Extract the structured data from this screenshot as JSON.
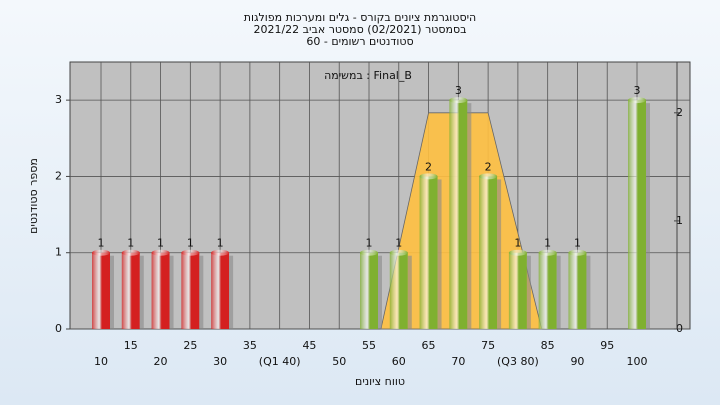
{
  "chart_data": {
    "type": "bar",
    "title": "היסטוגרמת ציונים בקורס - גלים ומערכות מפולגות",
    "subtitle": "בסמסטר  (02/2021)  סמסטר אביב 2021/22",
    "subtitle2": "סטודנטים רשומים - 60",
    "annotation": "במשימה : Final_B",
    "ylabel": "מספר סטודנטים",
    "xlabel": "טווח ציונים",
    "categories": [
      "10",
      "15",
      "20",
      "25",
      "30",
      "35",
      "(Q1 40)",
      "45",
      "50",
      "55",
      "60",
      "65",
      "70",
      "75",
      "(Q3 80)",
      "85",
      "90",
      "95",
      "100"
    ],
    "values": [
      1,
      1,
      1,
      1,
      1,
      0,
      0,
      0,
      0,
      1,
      1,
      2,
      3,
      2,
      1,
      1,
      1,
      0,
      3
    ],
    "colors": [
      "#d42020",
      "#d42020",
      "#d42020",
      "#d42020",
      "#d42020",
      "#7fb030",
      "#7fb030",
      "#7fb030",
      "#7fb030",
      "#7fb030",
      "#7fb030",
      "#7fb030",
      "#7fb030",
      "#7fb030",
      "#7fb030",
      "#7fb030",
      "#7fb030",
      "#7fb030",
      "#7fb030"
    ],
    "ylim": [
      0,
      3.5
    ],
    "yticks": [
      0,
      1,
      2,
      3
    ],
    "y2lim": [
      0,
      2.47
    ],
    "y2ticks": [
      0,
      1,
      2
    ],
    "area": {
      "x": [
        57,
        65,
        75,
        84
      ],
      "values": [
        0,
        2,
        2,
        0
      ],
      "axis": "y2",
      "color": "#ffc040"
    },
    "grid": true
  }
}
